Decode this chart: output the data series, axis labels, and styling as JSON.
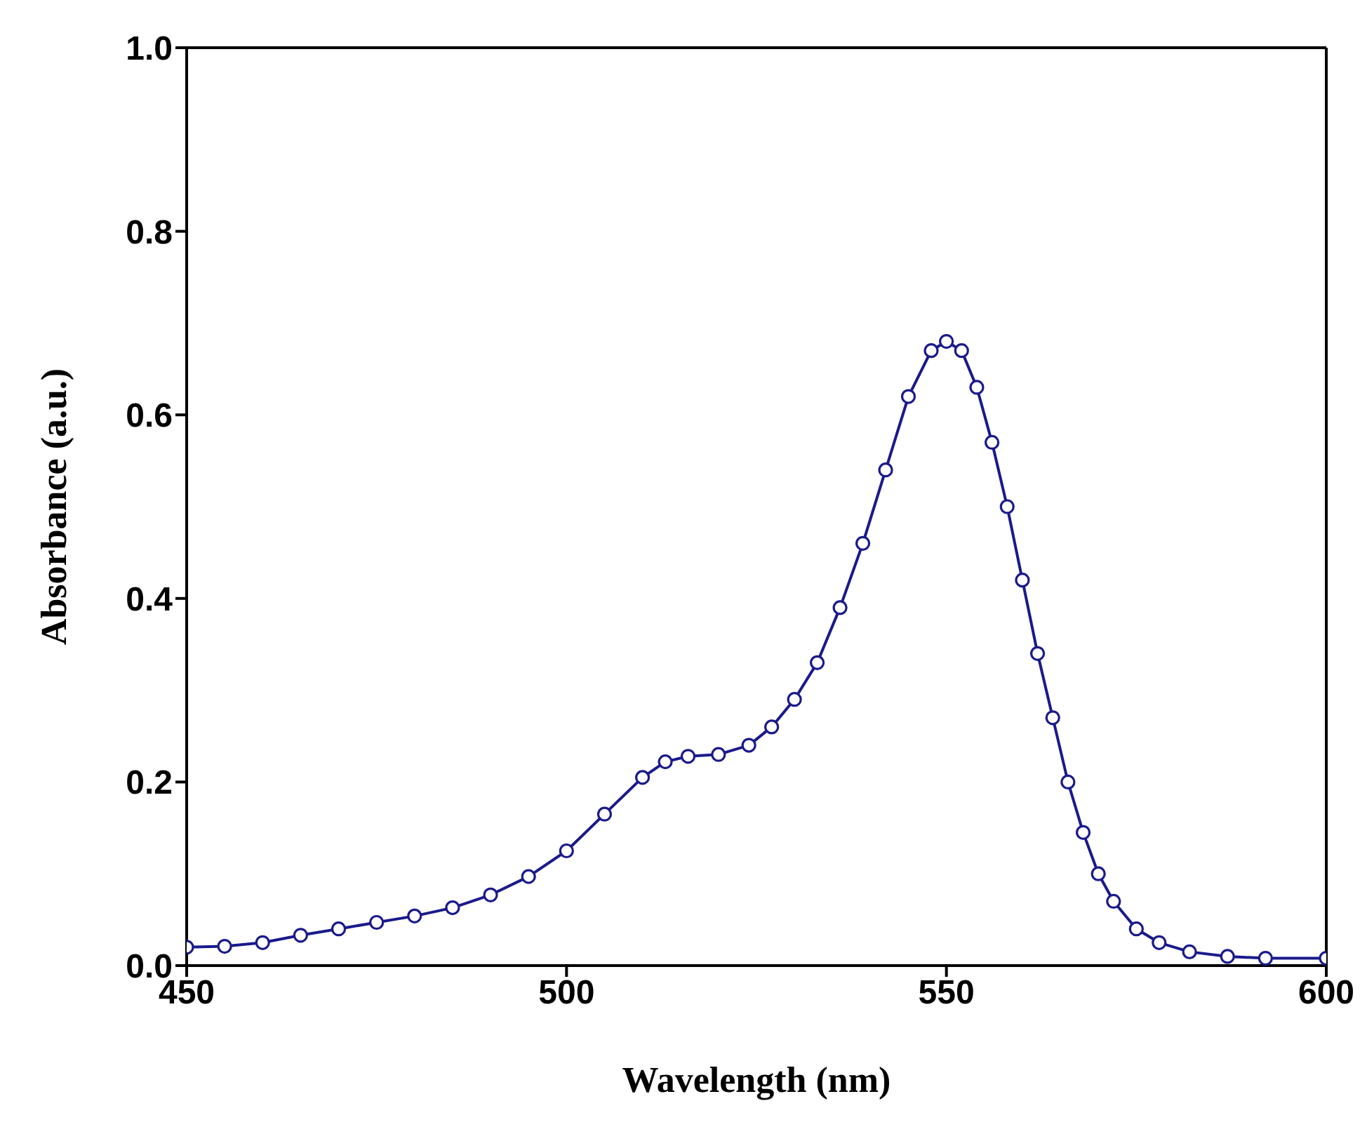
{
  "chart_data": {
    "type": "line",
    "xlabel": "Wavelength (nm)",
    "ylabel": "Absorbance (a.u.)",
    "xlim": [
      450,
      600
    ],
    "xticks": [
      450,
      500,
      550,
      600
    ],
    "ylim": [
      0,
      1.0
    ],
    "yticks": [
      {
        "value": 0,
        "label": "0.0"
      },
      {
        "value": 0.2,
        "label": "0.2"
      },
      {
        "value": 0.4,
        "label": "0.4"
      },
      {
        "value": 0.6,
        "label": "0.6"
      },
      {
        "value": 0.8,
        "label": "0.8"
      },
      {
        "value": 1.0,
        "label": "1.0"
      }
    ],
    "x": [
      450,
      455,
      460,
      465,
      470,
      475,
      480,
      485,
      490,
      495,
      500,
      505,
      510,
      513,
      516,
      520,
      524,
      527,
      530,
      533,
      536,
      539,
      542,
      545,
      548,
      550,
      552,
      554,
      556,
      558,
      560,
      562,
      564,
      566,
      568,
      570,
      572,
      575,
      578,
      582,
      587,
      592,
      600
    ],
    "series": [
      {
        "color": "#1a1a8c",
        "values": [
          0.02,
          0.021,
          0.025,
          0.033,
          0.04,
          0.047,
          0.054,
          0.063,
          0.077,
          0.097,
          0.125,
          0.165,
          0.205,
          0.222,
          0.228,
          0.23,
          0.24,
          0.26,
          0.29,
          0.33,
          0.39,
          0.46,
          0.54,
          0.62,
          0.67,
          0.68,
          0.67,
          0.63,
          0.57,
          0.5,
          0.42,
          0.34,
          0.27,
          0.2,
          0.145,
          0.1,
          0.07,
          0.04,
          0.025,
          0.015,
          0.01,
          0.008,
          0.008
        ]
      }
    ],
    "marker": "circle",
    "line_style": "solid",
    "grid": false
  }
}
